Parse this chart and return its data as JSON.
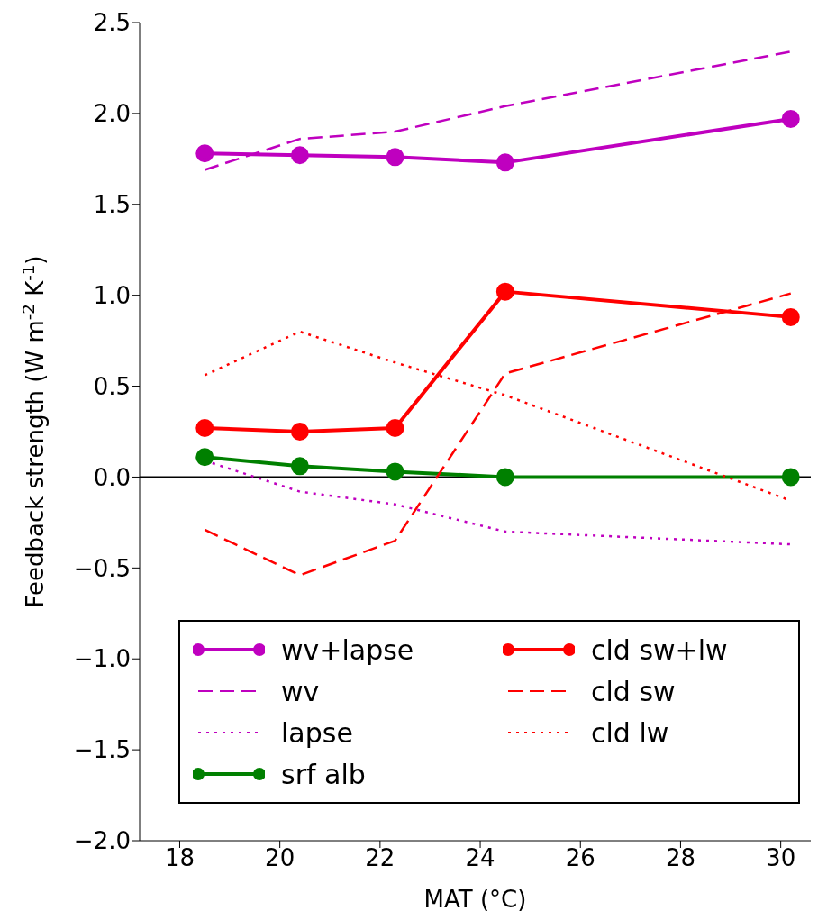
{
  "chart_data": {
    "type": "line",
    "xlabel": "MAT (°C)",
    "ylabel": "Feedback strength (W m$^{-2}$ K$^{-1}$)",
    "x": [
      18.5,
      20.4,
      22.3,
      24.5,
      30.2
    ],
    "xlim": [
      17.2,
      30.6
    ],
    "xticks": [
      18,
      20,
      22,
      24,
      26,
      28,
      30
    ],
    "ylim": [
      -2,
      2.5
    ],
    "yticks": [
      {
        "value": -2,
        "label": "−2.0"
      },
      {
        "value": -1.5,
        "label": "−1.5"
      },
      {
        "value": -1,
        "label": "−1.0"
      },
      {
        "value": -0.5,
        "label": "−0.5"
      },
      {
        "value": 0,
        "label": "0.0"
      },
      {
        "value": 0.5,
        "label": "0.5"
      },
      {
        "value": 1,
        "label": "1.0"
      },
      {
        "value": 1.5,
        "label": "1.5"
      },
      {
        "value": 2,
        "label": "2.0"
      },
      {
        "value": 2.5,
        "label": "2.5"
      }
    ],
    "grid": false,
    "legend": "bottom",
    "ref_lines": [
      {
        "axis": "y",
        "value": 0,
        "color": "#000000"
      }
    ],
    "series": [
      {
        "name": "wv+lapse",
        "color": "#bf00bf",
        "marker": "circle",
        "line_style": "solid",
        "values": [
          1.78,
          1.77,
          1.76,
          1.73,
          1.97
        ]
      },
      {
        "name": "wv",
        "color": "#bf00bf",
        "marker": "none",
        "line_style": "dashed",
        "values": [
          1.69,
          1.86,
          1.9,
          2.04,
          2.34
        ]
      },
      {
        "name": "lapse",
        "color": "#bf00bf",
        "marker": "none",
        "line_style": "dotted",
        "values": [
          0.09,
          -0.08,
          -0.15,
          -0.3,
          -0.37
        ]
      },
      {
        "name": "srf alb",
        "color": "#008000",
        "marker": "circle",
        "line_style": "solid",
        "values": [
          0.11,
          0.06,
          0.03,
          0,
          0
        ]
      },
      {
        "name": "cld sw+lw",
        "color": "#ff0000",
        "marker": "circle",
        "line_style": "solid",
        "values": [
          0.27,
          0.25,
          0.27,
          1.02,
          0.88
        ]
      },
      {
        "name": "cld sw",
        "color": "#ff0000",
        "marker": "none",
        "line_style": "dashed",
        "values": [
          -0.29,
          -0.54,
          -0.35,
          0.57,
          1.01
        ]
      },
      {
        "name": "cld lw",
        "color": "#ff0000",
        "marker": "none",
        "line_style": "dotted",
        "values": [
          0.56,
          0.8,
          0.63,
          0.45,
          -0.13
        ]
      }
    ]
  }
}
